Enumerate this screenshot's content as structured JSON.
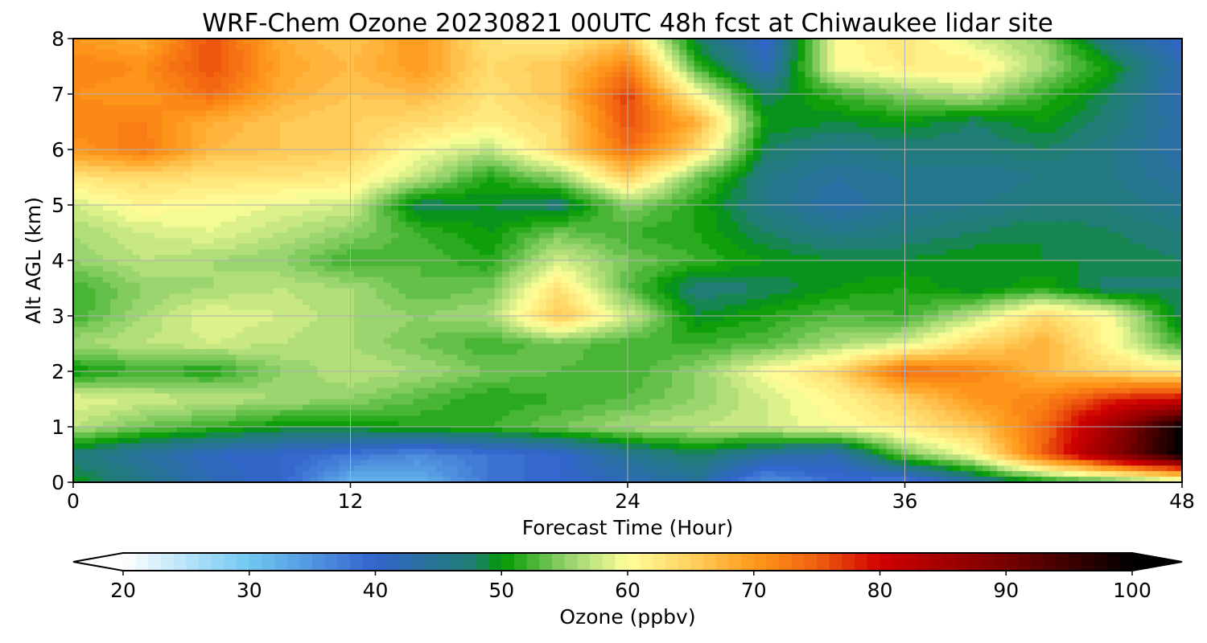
{
  "chart_data": {
    "type": "heatmap",
    "style": "filled-contour",
    "title": "WRF-Chem Ozone  20230821 00UTC 48h fcst at Chiwaukee lidar site",
    "xlabel": "Forecast Time (Hour)",
    "ylabel": "Alt AGL (km)",
    "xlim": [
      0,
      48
    ],
    "ylim": [
      0,
      8
    ],
    "xticks": [
      0,
      12,
      24,
      36,
      48
    ],
    "yticks": [
      0,
      1,
      2,
      3,
      4,
      5,
      6,
      7,
      8
    ],
    "grid": true,
    "x": [
      0,
      3,
      6,
      9,
      12,
      15,
      18,
      21,
      24,
      27,
      30,
      33,
      36,
      39,
      42,
      45,
      48
    ],
    "y": [
      0,
      0.5,
      1,
      1.5,
      2,
      2.5,
      3,
      3.5,
      4,
      4.5,
      5,
      5.5,
      6,
      6.5,
      7,
      7.5,
      8
    ],
    "z": [
      [
        50,
        46,
        42,
        40,
        32,
        32,
        38,
        40,
        42,
        44,
        35,
        39,
        37,
        44,
        50,
        52,
        56
      ],
      [
        47,
        44,
        41,
        40,
        38,
        36,
        38,
        40,
        45,
        48,
        44,
        42,
        54,
        60,
        75,
        88,
        100
      ],
      [
        57,
        54,
        52,
        50,
        50,
        51,
        52,
        54,
        56,
        57,
        58,
        60,
        62,
        66,
        74,
        86,
        100
      ],
      [
        59,
        58,
        57,
        56,
        55,
        53,
        51,
        52,
        53,
        55,
        58,
        61,
        65,
        70,
        72,
        78,
        80
      ],
      [
        50,
        52,
        51,
        55,
        57,
        56,
        54,
        53,
        52,
        55,
        60,
        64,
        74,
        72,
        67,
        64,
        62
      ],
      [
        56,
        57,
        58,
        57,
        56,
        54,
        52,
        54,
        52,
        52,
        53,
        56,
        58,
        64,
        68,
        60,
        52
      ],
      [
        52,
        56,
        59,
        58,
        56,
        55,
        56,
        66,
        58,
        49,
        51,
        53,
        52,
        57,
        64,
        60,
        48
      ],
      [
        52,
        55,
        56,
        57,
        56,
        53,
        54,
        63,
        53,
        47,
        48,
        50,
        51,
        49,
        51,
        47,
        48
      ],
      [
        55,
        57,
        56,
        55,
        52,
        53,
        51,
        58,
        54,
        52,
        50,
        49,
        49,
        50,
        49,
        49,
        48
      ],
      [
        56,
        58,
        59,
        57,
        55,
        52,
        50,
        54,
        52,
        51,
        48,
        46,
        47,
        48,
        49,
        48,
        47
      ],
      [
        58,
        61,
        60,
        59,
        58,
        48,
        49,
        47,
        55,
        51,
        46,
        43,
        45,
        46,
        47,
        47,
        45
      ],
      [
        63,
        64,
        63,
        63,
        62,
        57,
        51,
        55,
        65,
        54,
        46,
        44,
        45,
        45,
        46,
        46,
        44
      ],
      [
        70,
        73,
        67,
        66,
        65,
        60,
        57,
        64,
        74,
        64,
        48,
        46,
        47,
        47,
        48,
        46,
        43
      ],
      [
        72,
        72,
        68,
        66,
        65,
        64,
        62,
        64,
        76,
        68,
        50,
        49,
        50,
        48,
        50,
        47,
        43
      ],
      [
        71,
        70,
        74,
        68,
        66,
        67,
        63,
        66,
        77,
        60,
        48,
        52,
        55,
        57,
        52,
        48,
        42
      ],
      [
        72,
        71,
        76,
        69,
        67,
        70,
        64,
        66,
        72,
        52,
        42,
        60,
        62,
        62,
        56,
        50,
        42
      ],
      [
        70,
        68,
        76,
        68,
        66,
        70,
        63,
        62,
        66,
        48,
        40,
        60,
        63,
        58,
        55,
        45,
        40
      ]
    ],
    "colorbar": {
      "label": "Ozone  (ppbv)",
      "ticks": [
        20,
        30,
        40,
        50,
        60,
        70,
        80,
        90,
        100
      ],
      "min": 20,
      "max": 100,
      "step": 1,
      "extend": "both",
      "colors": {
        "20": "#ffffff",
        "30": "#70c8f2",
        "40": "#3263cc",
        "48": "#1e7f6f",
        "50": "#009900",
        "55": "#8fd06a",
        "60": "#ffff99",
        "65": "#ffd060",
        "70": "#ff9a1a",
        "75": "#f06010",
        "80": "#d00000",
        "90": "#780000",
        "100": "#000000"
      }
    }
  }
}
